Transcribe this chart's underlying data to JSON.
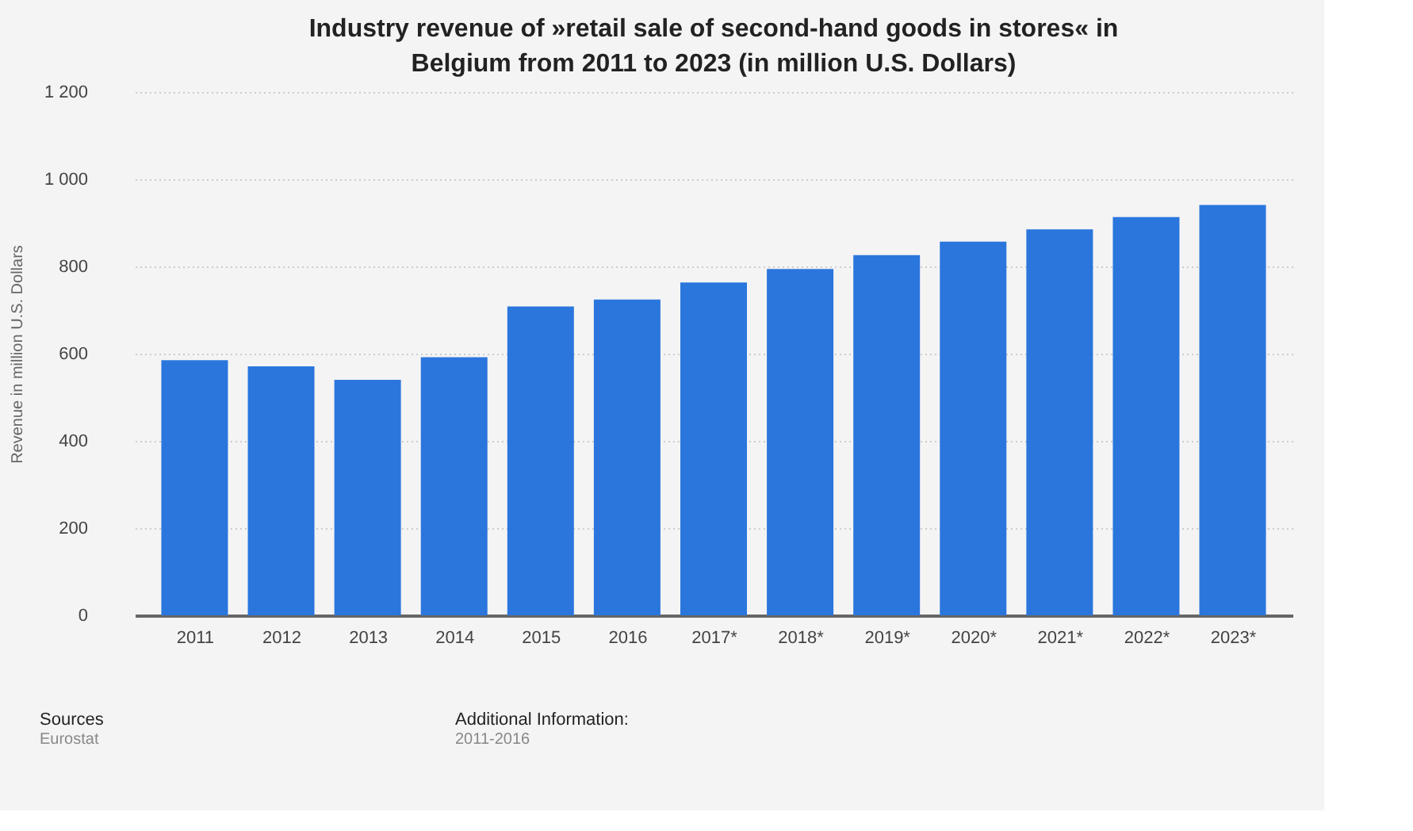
{
  "chart_data": {
    "type": "bar",
    "title": "Industry revenue of »retail sale of second-hand goods in stores« in Belgium from 2011 to 2023 (in million U.S. Dollars)",
    "ylabel": "Revenue in million U.S. Dollars",
    "categories": [
      "2011",
      "2012",
      "2013",
      "2014",
      "2015",
      "2016",
      "2017*",
      "2018*",
      "2019*",
      "2020*",
      "2021*",
      "2022*",
      "2023*"
    ],
    "values": [
      585,
      571,
      540,
      592,
      708,
      724,
      763,
      794,
      826,
      857,
      885,
      913,
      941
    ],
    "color": "#2a76dd",
    "ylim": [
      0,
      1200
    ],
    "yticks": [
      0,
      200,
      400,
      600,
      800,
      {
        "value": 1000,
        "label": "1 000"
      },
      {
        "value": 1200,
        "label": "1 200"
      }
    ],
    "grid": "y",
    "annotations": [
      "Sources",
      "Eurostat",
      "Additional Information:",
      "2011-2016"
    ]
  }
}
